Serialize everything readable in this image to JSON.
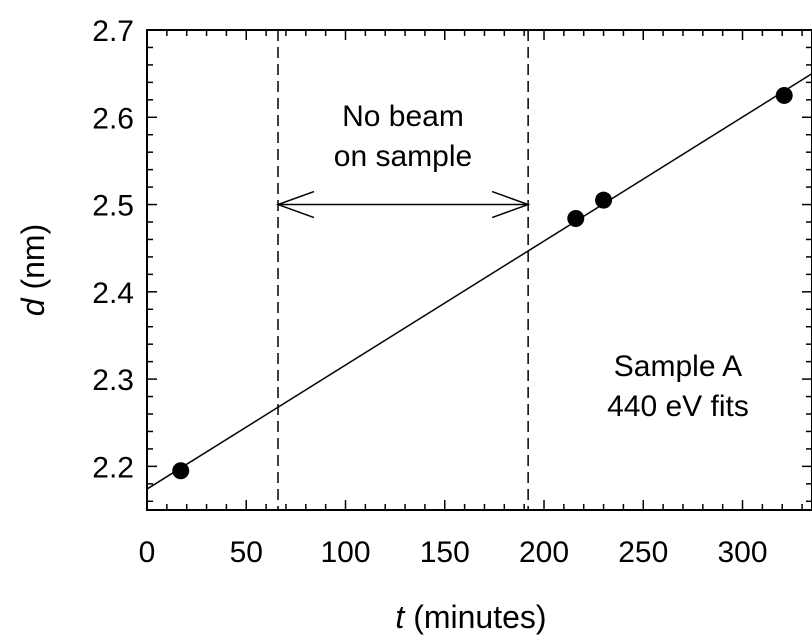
{
  "chart_data": {
    "type": "scatter",
    "title": "",
    "xlabel": {
      "var": "t",
      "unit": " (minutes)"
    },
    "ylabel": {
      "var": "d",
      "unit": " (nm)"
    },
    "xlim": [
      0,
      335
    ],
    "ylim": [
      2.15,
      2.7
    ],
    "x_ticks": [
      0,
      50,
      100,
      150,
      200,
      250,
      300
    ],
    "y_ticks": [
      2.2,
      2.3,
      2.4,
      2.5,
      2.6,
      2.7
    ],
    "x_tick_labels": [
      "0",
      "50",
      "100",
      "150",
      "200",
      "250",
      "300"
    ],
    "y_tick_labels": [
      "2.2",
      "2.3",
      "2.4",
      "2.5",
      "2.6",
      "2.7"
    ],
    "grid": false,
    "series": [
      {
        "points": [
          {
            "x": 17,
            "y": 2.195
          },
          {
            "x": 216,
            "y": 2.484
          },
          {
            "x": 230,
            "y": 2.505
          },
          {
            "x": 321,
            "y": 2.625
          }
        ],
        "marker": "filled-circle",
        "color": "#000000"
      }
    ],
    "fit_line": {
      "x": [
        0,
        335
      ],
      "y": [
        2.174,
        2.65
      ]
    },
    "no_beam_interval": {
      "x": [
        66,
        192
      ]
    },
    "annotations": {
      "no_beam_line1": "No beam",
      "no_beam_line2": "on sample",
      "sample_line1": "Sample A",
      "sample_line2": "440 eV fits"
    }
  }
}
